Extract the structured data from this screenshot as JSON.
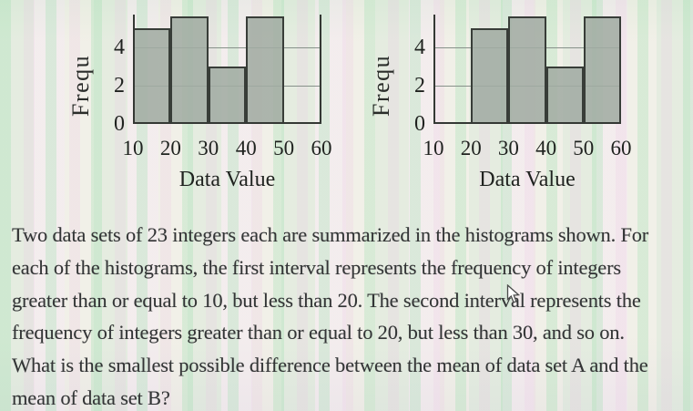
{
  "problem": {
    "lines": [
      "Two data sets of 23 integers each are summarized in the histograms shown. For",
      "each of the histograms, the first interval represents the frequency of integers",
      "greater than or equal to 10, but less than 20. The second interval represents the",
      "frequency of integers greater than or equal to 20, but less than 30, and so on.",
      "What is the smallest possible difference between the mean of data set A and the",
      "mean of data set B?"
    ]
  },
  "chart_data": [
    {
      "type": "bar",
      "name": "data-set-A-histogram",
      "title": "",
      "xlabel": "Data Value",
      "ylabel": "Frequ",
      "ylabel_note": "rotated y-axis label, word 'Frequency' truncated because figure is cropped at top",
      "x_ticks": [
        "10",
        "20",
        "30",
        "40",
        "50",
        "60"
      ],
      "y_ticks": [
        0,
        2,
        4
      ],
      "gridlines": [
        2,
        4
      ],
      "ylim_visible": [
        0,
        5.7
      ],
      "grid": true,
      "legend": false,
      "right_frame": true,
      "bars": [
        {
          "interval": [
            10,
            20
          ],
          "frequency": 5,
          "cut_off_top": false
        },
        {
          "interval": [
            20,
            30
          ],
          "frequency": null,
          "frequency_visible": 5.6,
          "cut_off_top": true
        },
        {
          "interval": [
            30,
            40
          ],
          "frequency": 3,
          "cut_off_top": false
        },
        {
          "interval": [
            40,
            50
          ],
          "frequency": null,
          "frequency_visible": 5.6,
          "cut_off_top": true
        },
        {
          "interval": [
            50,
            60
          ],
          "frequency": 0,
          "cut_off_top": false
        }
      ]
    },
    {
      "type": "bar",
      "name": "data-set-B-histogram",
      "title": "",
      "xlabel": "Data Value",
      "ylabel": "Frequ",
      "ylabel_note": "rotated y-axis label, word 'Frequency' truncated because figure is cropped at top",
      "x_ticks": [
        "10",
        "20",
        "30",
        "40",
        "50",
        "60"
      ],
      "y_ticks": [
        0,
        2,
        4
      ],
      "gridlines": [
        2,
        4
      ],
      "ylim_visible": [
        0,
        5.7
      ],
      "grid": true,
      "legend": false,
      "right_frame": false,
      "bars": [
        {
          "interval": [
            10,
            20
          ],
          "frequency": 0,
          "cut_off_top": false
        },
        {
          "interval": [
            20,
            30
          ],
          "frequency": 5,
          "cut_off_top": false
        },
        {
          "interval": [
            30,
            40
          ],
          "frequency": null,
          "frequency_visible": 5.6,
          "cut_off_top": true
        },
        {
          "interval": [
            40,
            50
          ],
          "frequency": 3,
          "cut_off_top": false
        },
        {
          "interval": [
            50,
            60
          ],
          "frequency": null,
          "frequency_visible": 5.6,
          "cut_off_top": true
        }
      ]
    }
  ],
  "cursor": {
    "type": "arrow-pointer"
  },
  "colors": {
    "bar_fill": "rgba(162,172,163,0.88)",
    "bar_border": "#383d38",
    "axis": "#343834",
    "gridline": "#87918a",
    "text": "#333536"
  }
}
